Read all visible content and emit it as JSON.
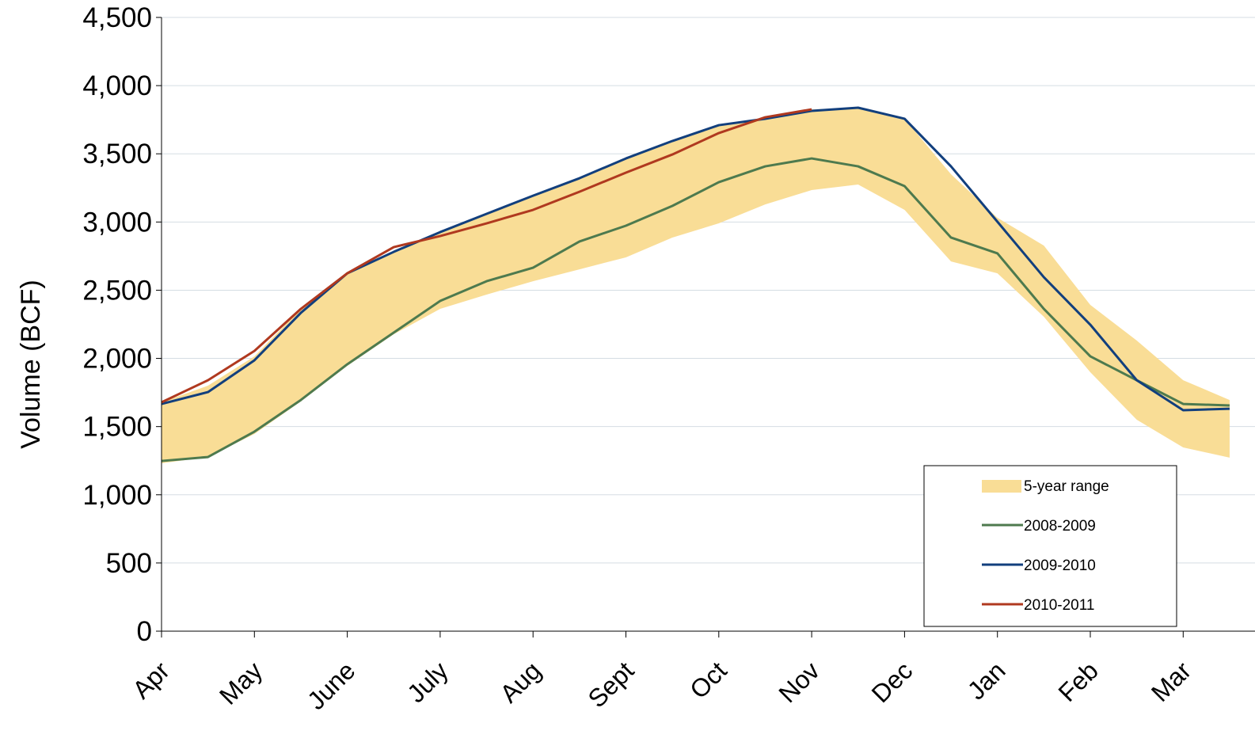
{
  "chart_data": {
    "type": "line",
    "y_label": "Volume (BCF)",
    "categories": [
      "Apr",
      null,
      "May",
      null,
      "June",
      null,
      "July",
      null,
      "Aug",
      null,
      "Sept",
      null,
      "Oct",
      null,
      "Nov",
      null,
      "Dec",
      null,
      "Jan",
      null,
      "Feb",
      null,
      "Mar",
      null
    ],
    "ylim": [
      0,
      4500
    ],
    "yticks": [
      0,
      500,
      {
        "value": 1000,
        "label": "1,000"
      },
      {
        "value": 1500,
        "label": "1,500"
      },
      {
        "value": 2000,
        "label": "2,000"
      },
      {
        "value": 2500,
        "label": "2,500"
      },
      {
        "value": 3000,
        "label": "3,000"
      },
      {
        "value": 3500,
        "label": "3,500"
      },
      {
        "value": 4000,
        "label": "4,000"
      },
      {
        "value": 4500,
        "label": "4,500"
      }
    ],
    "grid": true,
    "legend": "lower right",
    "range": {
      "name": "5-year range",
      "color": "#f9dd96",
      "high": [
        1678,
        1800,
        2015,
        2363,
        2624,
        2781,
        2926,
        3060,
        3193,
        3321,
        3466,
        3594,
        3710,
        3757,
        3826,
        3838,
        3757,
        3350,
        3031,
        2827,
        2392,
        2131,
        1840,
        1695
      ],
      "low": [
        1231,
        1277,
        1446,
        1684,
        1945,
        2177,
        2363,
        2468,
        2566,
        2653,
        2741,
        2886,
        2990,
        3129,
        3234,
        3275,
        3089,
        2711,
        2624,
        2305,
        1899,
        1550,
        1347,
        1272
      ]
    },
    "series": [
      {
        "name": "2008-2009",
        "color": "#4e7a4e",
        "values": [
          1248,
          1277,
          1463,
          1695,
          1957,
          2189,
          2421,
          2566,
          2665,
          2857,
          2973,
          3118,
          3292,
          3408,
          3466,
          3408,
          3263,
          2886,
          2770,
          2363,
          2015,
          1840,
          1666,
          1655
        ]
      },
      {
        "name": "2009-2010",
        "color": "#123f7d",
        "values": [
          1666,
          1753,
          1986,
          2334,
          2624,
          2781,
          2926,
          3060,
          3193,
          3321,
          3466,
          3594,
          3710,
          3757,
          3815,
          3838,
          3757,
          3408,
          3002,
          2595,
          2247,
          1840,
          1620,
          1631
        ]
      },
      {
        "name": "2010-2011",
        "color": "#b0391f",
        "values": [
          1678,
          1840,
          2055,
          2363,
          2624,
          2816,
          2897,
          2990,
          3089,
          3222,
          3362,
          3495,
          3652,
          3768,
          3826,
          null,
          null,
          null,
          null,
          null,
          null,
          null,
          null,
          null
        ]
      }
    ]
  }
}
